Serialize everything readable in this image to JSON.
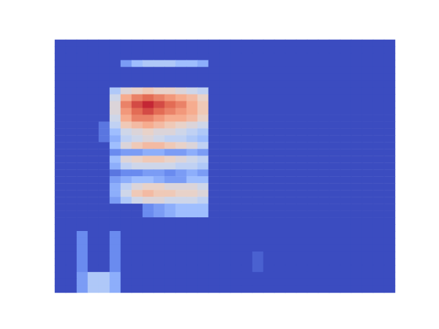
{
  "chart_data": {
    "type": "heatmap",
    "color": "coolwarm",
    "color_range": [
      0,
      1
    ],
    "tick_labels": false,
    "cells": [
      [
        0,
        0,
        0,
        0,
        0,
        0,
        0,
        0,
        0,
        0,
        0,
        0,
        0,
        0,
        0,
        0,
        0,
        0,
        0,
        0,
        0,
        0,
        0,
        0,
        0,
        0,
        0,
        0,
        0,
        0,
        0
      ],
      [
        0,
        0,
        0,
        0,
        0,
        0,
        0,
        0,
        0,
        0,
        0,
        0,
        0,
        0,
        0,
        0,
        0,
        0,
        0,
        0,
        0,
        0,
        0,
        0,
        0,
        0,
        0,
        0,
        0,
        0,
        0
      ],
      [
        0,
        0,
        0,
        0,
        0,
        0,
        0,
        0,
        0,
        0,
        0,
        0,
        0,
        0,
        0,
        0,
        0,
        0,
        0,
        0,
        0,
        0,
        0,
        0,
        0,
        0,
        0,
        0,
        0,
        0,
        0
      ],
      [
        0,
        0,
        0,
        0,
        0,
        0,
        0.2,
        0.3,
        0.35,
        0.35,
        0.35,
        0.3,
        0.3,
        0.25,
        0,
        0,
        0,
        0,
        0,
        0,
        0,
        0,
        0,
        0,
        0,
        0,
        0,
        0,
        0,
        0,
        0
      ],
      [
        0,
        0,
        0,
        0,
        0,
        0,
        0,
        0,
        0,
        0,
        0,
        0,
        0,
        0,
        0,
        0,
        0,
        0,
        0,
        0,
        0,
        0,
        0,
        0,
        0,
        0,
        0,
        0,
        0,
        0,
        0
      ],
      [
        0,
        0,
        0,
        0,
        0,
        0,
        0,
        0,
        0,
        0,
        0,
        0,
        0,
        0,
        0,
        0,
        0,
        0,
        0,
        0,
        0,
        0,
        0,
        0,
        0,
        0,
        0,
        0,
        0,
        0,
        0
      ],
      [
        0,
        0,
        0,
        0,
        0,
        0,
        0,
        0,
        0,
        0,
        0,
        0,
        0,
        0,
        0,
        0,
        0,
        0,
        0,
        0,
        0,
        0,
        0,
        0,
        0,
        0,
        0,
        0,
        0,
        0,
        0
      ],
      [
        0,
        0,
        0,
        0,
        0,
        0.35,
        0.5,
        0.55,
        0.6,
        0.55,
        0.55,
        0.5,
        0.45,
        0.4,
        0,
        0,
        0,
        0,
        0,
        0,
        0,
        0,
        0,
        0,
        0,
        0,
        0,
        0,
        0,
        0,
        0
      ],
      [
        0,
        0,
        0,
        0,
        0,
        0.45,
        0.7,
        0.8,
        0.85,
        0.8,
        0.75,
        0.7,
        0.65,
        0.55,
        0,
        0,
        0,
        0,
        0,
        0,
        0,
        0,
        0,
        0,
        0,
        0,
        0,
        0,
        0,
        0,
        0
      ],
      [
        0,
        0,
        0,
        0,
        0,
        0.5,
        0.8,
        0.9,
        0.95,
        0.9,
        0.85,
        0.8,
        0.7,
        0.6,
        0,
        0,
        0,
        0,
        0,
        0,
        0,
        0,
        0,
        0,
        0,
        0,
        0,
        0,
        0,
        0,
        0
      ],
      [
        0,
        0,
        0,
        0,
        0,
        0.5,
        0.75,
        0.85,
        0.9,
        0.85,
        0.8,
        0.75,
        0.7,
        0.6,
        0,
        0,
        0,
        0,
        0,
        0,
        0,
        0,
        0,
        0,
        0,
        0,
        0,
        0,
        0,
        0,
        0
      ],
      [
        0,
        0,
        0,
        0,
        0,
        0.45,
        0.7,
        0.8,
        0.8,
        0.75,
        0.7,
        0.7,
        0.65,
        0.55,
        0,
        0,
        0,
        0,
        0,
        0,
        0,
        0,
        0,
        0,
        0,
        0,
        0,
        0,
        0,
        0,
        0
      ],
      [
        0,
        0,
        0,
        0,
        0.1,
        0.4,
        0.6,
        0.65,
        0.7,
        0.65,
        0.6,
        0.55,
        0.5,
        0.45,
        0,
        0,
        0,
        0,
        0,
        0,
        0,
        0,
        0,
        0,
        0,
        0,
        0,
        0,
        0,
        0,
        0
      ],
      [
        0,
        0,
        0,
        0,
        0.1,
        0.3,
        0.45,
        0.5,
        0.55,
        0.5,
        0.5,
        0.45,
        0.4,
        0.35,
        0,
        0,
        0,
        0,
        0,
        0,
        0,
        0,
        0,
        0,
        0,
        0,
        0,
        0,
        0,
        0,
        0
      ],
      [
        0,
        0,
        0,
        0,
        0.1,
        0.25,
        0.4,
        0.45,
        0.5,
        0.45,
        0.4,
        0.4,
        0.35,
        0.3,
        0,
        0,
        0,
        0,
        0,
        0,
        0,
        0,
        0,
        0,
        0,
        0,
        0,
        0,
        0,
        0,
        0
      ],
      [
        0,
        0,
        0,
        0,
        0,
        0.3,
        0.5,
        0.6,
        0.65,
        0.65,
        0.6,
        0.55,
        0.5,
        0.4,
        0,
        0,
        0,
        0,
        0,
        0,
        0,
        0,
        0,
        0,
        0,
        0,
        0,
        0,
        0,
        0,
        0
      ],
      [
        0,
        0,
        0,
        0,
        0,
        0.15,
        0.2,
        0.2,
        0.25,
        0.25,
        0.2,
        0.2,
        0.25,
        0.2,
        0,
        0,
        0,
        0,
        0,
        0,
        0,
        0,
        0,
        0,
        0,
        0,
        0,
        0,
        0,
        0,
        0
      ],
      [
        0,
        0,
        0,
        0,
        0,
        0.3,
        0.5,
        0.55,
        0.6,
        0.6,
        0.55,
        0.5,
        0.45,
        0.4,
        0,
        0,
        0,
        0,
        0,
        0,
        0,
        0,
        0,
        0,
        0,
        0,
        0,
        0,
        0,
        0,
        0
      ],
      [
        0,
        0,
        0,
        0,
        0,
        0.25,
        0.4,
        0.45,
        0.45,
        0.45,
        0.45,
        0.4,
        0.4,
        0.35,
        0,
        0,
        0,
        0,
        0,
        0,
        0,
        0,
        0,
        0,
        0,
        0,
        0,
        0,
        0,
        0,
        0
      ],
      [
        0,
        0,
        0,
        0,
        0,
        0.1,
        0.15,
        0.15,
        0.2,
        0.2,
        0.15,
        0.2,
        0.25,
        0.2,
        0,
        0,
        0,
        0,
        0,
        0,
        0,
        0,
        0,
        0,
        0,
        0,
        0,
        0,
        0,
        0,
        0
      ],
      [
        0,
        0,
        0,
        0,
        0,
        0.2,
        0.25,
        0.3,
        0.3,
        0.25,
        0.2,
        0.2,
        0.3,
        0.3,
        0,
        0,
        0,
        0,
        0,
        0,
        0,
        0,
        0,
        0,
        0,
        0,
        0,
        0,
        0,
        0,
        0
      ],
      [
        0,
        0,
        0,
        0,
        0,
        0.25,
        0.4,
        0.5,
        0.55,
        0.55,
        0.5,
        0.5,
        0.5,
        0.45,
        0,
        0,
        0,
        0,
        0,
        0,
        0,
        0,
        0,
        0,
        0,
        0,
        0,
        0,
        0,
        0,
        0
      ],
      [
        0,
        0,
        0,
        0,
        0,
        0.25,
        0.45,
        0.6,
        0.65,
        0.6,
        0.6,
        0.55,
        0.55,
        0.5,
        0,
        0,
        0,
        0,
        0,
        0,
        0,
        0,
        0,
        0,
        0,
        0,
        0,
        0,
        0,
        0,
        0
      ],
      [
        0,
        0,
        0,
        0,
        0,
        0.2,
        0.35,
        0.45,
        0.5,
        0.5,
        0.45,
        0.45,
        0.45,
        0.4,
        0,
        0,
        0,
        0,
        0,
        0,
        0,
        0,
        0,
        0,
        0,
        0,
        0,
        0,
        0,
        0,
        0
      ],
      [
        0,
        0,
        0,
        0,
        0,
        0,
        0,
        0,
        0.15,
        0.2,
        0.25,
        0.3,
        0.3,
        0.3,
        0,
        0,
        0,
        0,
        0,
        0,
        0,
        0,
        0,
        0,
        0,
        0,
        0,
        0,
        0,
        0,
        0
      ],
      [
        0,
        0,
        0,
        0,
        0,
        0,
        0,
        0,
        0.15,
        0.2,
        0.25,
        0.3,
        0.3,
        0.3,
        0,
        0,
        0,
        0,
        0,
        0,
        0,
        0,
        0,
        0,
        0,
        0,
        0,
        0,
        0,
        0,
        0
      ],
      [
        0,
        0,
        0,
        0,
        0,
        0,
        0,
        0,
        0,
        0,
        0,
        0,
        0,
        0,
        0,
        0,
        0,
        0,
        0,
        0,
        0,
        0,
        0,
        0,
        0,
        0,
        0,
        0,
        0,
        0,
        0
      ],
      [
        0,
        0,
        0,
        0,
        0,
        0,
        0,
        0,
        0,
        0,
        0,
        0,
        0,
        0,
        0,
        0,
        0,
        0,
        0,
        0,
        0,
        0,
        0,
        0,
        0,
        0,
        0,
        0,
        0,
        0,
        0
      ],
      [
        0,
        0,
        0.15,
        0,
        0,
        0.15,
        0,
        0,
        0,
        0,
        0,
        0,
        0,
        0,
        0,
        0,
        0,
        0,
        0,
        0,
        0,
        0,
        0,
        0,
        0,
        0,
        0,
        0,
        0,
        0,
        0
      ],
      [
        0,
        0,
        0.15,
        0,
        0,
        0.15,
        0,
        0,
        0,
        0,
        0,
        0,
        0,
        0,
        0,
        0,
        0,
        0,
        0,
        0,
        0,
        0,
        0,
        0,
        0,
        0,
        0,
        0,
        0,
        0,
        0
      ],
      [
        0,
        0,
        0.15,
        0,
        0,
        0.15,
        0,
        0,
        0,
        0,
        0,
        0,
        0,
        0,
        0,
        0,
        0,
        0,
        0,
        0,
        0,
        0,
        0,
        0,
        0,
        0,
        0,
        0,
        0,
        0,
        0
      ],
      [
        0,
        0,
        0.15,
        0,
        0,
        0.15,
        0,
        0,
        0,
        0,
        0,
        0,
        0,
        0,
        0,
        0,
        0,
        0,
        0.05,
        0,
        0,
        0,
        0,
        0,
        0,
        0,
        0,
        0,
        0,
        0,
        0
      ],
      [
        0,
        0,
        0.15,
        0,
        0,
        0.15,
        0,
        0,
        0,
        0,
        0,
        0,
        0,
        0,
        0,
        0,
        0,
        0,
        0.05,
        0,
        0,
        0,
        0,
        0,
        0,
        0,
        0,
        0,
        0,
        0,
        0
      ],
      [
        0,
        0,
        0.15,
        0,
        0,
        0.15,
        0,
        0,
        0,
        0,
        0,
        0,
        0,
        0,
        0,
        0,
        0,
        0,
        0.05,
        0,
        0,
        0,
        0,
        0,
        0,
        0,
        0,
        0,
        0,
        0,
        0
      ],
      [
        0,
        0,
        0.2,
        0.35,
        0.35,
        0.25,
        0,
        0,
        0,
        0,
        0,
        0,
        0,
        0,
        0,
        0,
        0,
        0,
        0,
        0,
        0,
        0,
        0,
        0,
        0,
        0,
        0,
        0,
        0,
        0,
        0
      ],
      [
        0,
        0,
        0.2,
        0.35,
        0.35,
        0.25,
        0,
        0,
        0,
        0,
        0,
        0,
        0,
        0,
        0,
        0,
        0,
        0,
        0,
        0,
        0,
        0,
        0,
        0,
        0,
        0,
        0,
        0,
        0,
        0,
        0
      ],
      [
        0,
        0,
        0.2,
        0.35,
        0.35,
        0.25,
        0,
        0,
        0,
        0,
        0,
        0,
        0,
        0,
        0,
        0,
        0,
        0,
        0,
        0,
        0,
        0,
        0,
        0,
        0,
        0,
        0,
        0,
        0,
        0,
        0
      ]
    ]
  }
}
